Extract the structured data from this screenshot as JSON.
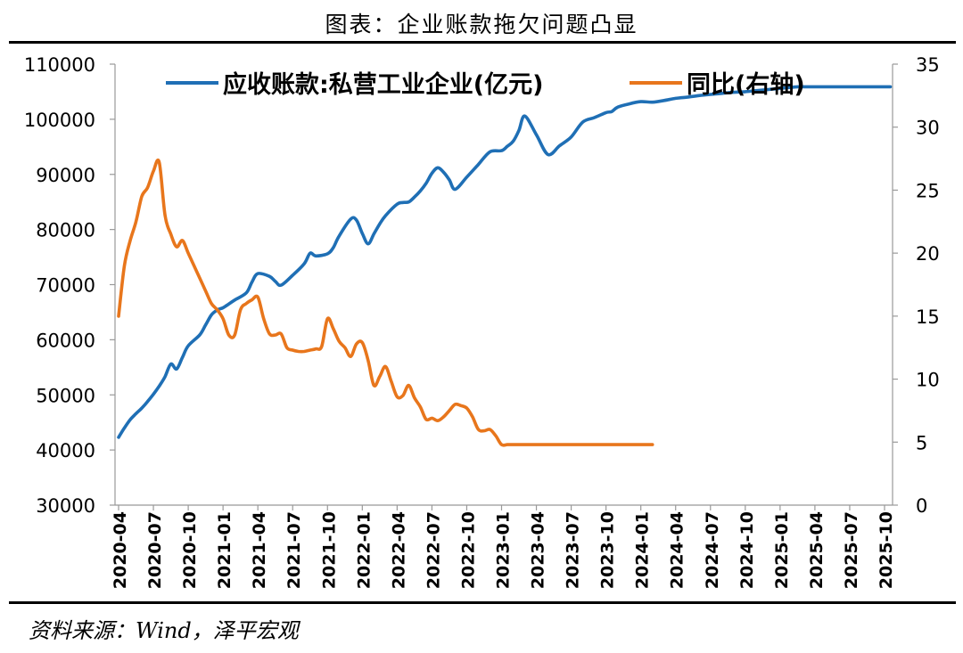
{
  "page": {
    "title": "图表：企业账款拖欠问题凸显",
    "source": "资料来源：Wind，泽平宏观"
  },
  "chart_data": {
    "type": "line",
    "title": "图表：企业账款拖欠问题凸显",
    "x_ticks": [
      "2020-04",
      "2020-07",
      "2020-10",
      "2021-01",
      "2021-04",
      "2021-07",
      "2021-10",
      "2022-01",
      "2022-04",
      "2022-07",
      "2022-10",
      "2023-01",
      "2023-04",
      "2023-07",
      "2023-10",
      "2024-01",
      "2024-04",
      "2024-07",
      "2024-10",
      "2025-01",
      "2025-04",
      "2025-07",
      "2025-10"
    ],
    "left_axis": {
      "min": 30000,
      "max": 110000,
      "ticks": [
        30000,
        40000,
        50000,
        60000,
        70000,
        80000,
        90000,
        100000,
        110000
      ]
    },
    "right_axis": {
      "min": 0,
      "max": 35,
      "ticks": [
        0,
        5,
        10,
        15,
        20,
        25,
        30,
        35
      ]
    },
    "legend_placement": "top-center",
    "series": [
      {
        "name": "应收账款:私营工业企业(亿元)",
        "axis": "left",
        "color": "#1F6FB5",
        "x": [
          0,
          0.5,
          1,
          1.5,
          2,
          2.5,
          3,
          3.5,
          4,
          4.5,
          5,
          5.5,
          6,
          7,
          7.5,
          8,
          8.5,
          9,
          9.5,
          10,
          11,
          11.5,
          12,
          13,
          13.5,
          14,
          15,
          16,
          16.5,
          17,
          18,
          18.5,
          19,
          20,
          20.5,
          21,
          21.5,
          22,
          22.5,
          23,
          24,
          24.5,
          25,
          25.5,
          26,
          26.5,
          27,
          27.5,
          28,
          28.5,
          29,
          30,
          31,
          32,
          33,
          33.5,
          34,
          34.5,
          35,
          36,
          37,
          38,
          39,
          40,
          41,
          42,
          42.5,
          43,
          44,
          45,
          46,
          47,
          48,
          49,
          50,
          51,
          52,
          53,
          54,
          55,
          56,
          57,
          58,
          58.5,
          59,
          60,
          61,
          62,
          63,
          64,
          65,
          66,
          66.5
        ],
        "values": [
          42300,
          44000,
          45500,
          46600,
          47600,
          48800,
          50100,
          51600,
          53300,
          55600,
          54700,
          56800,
          58900,
          60900,
          62700,
          64500,
          65400,
          65800,
          66500,
          67200,
          68500,
          70500,
          72000,
          71500,
          70600,
          69900,
          71700,
          73800,
          75700,
          75200,
          75600,
          76700,
          78800,
          81900,
          81700,
          79300,
          77400,
          79200,
          81000,
          82500,
          84600,
          84900,
          85000,
          85900,
          87000,
          88400,
          90200,
          91200,
          90400,
          89000,
          87300,
          89500,
          91800,
          94100,
          94300,
          95100,
          96000,
          98000,
          100600,
          97200,
          93600,
          95200,
          96800,
          99500,
          100300,
          101200,
          101400,
          102200,
          102800,
          103200,
          103100,
          103400,
          103800,
          104000,
          104300,
          104500,
          104700,
          104900,
          105000,
          105200,
          105400,
          105600,
          105800,
          105900,
          105900,
          105900,
          105900,
          105900,
          105900,
          105900,
          105900,
          105900,
          105900
        ]
      },
      {
        "name": "同比(右轴)",
        "axis": "right",
        "color": "#E8761C",
        "x": [
          0,
          0.5,
          1,
          1.5,
          2,
          2.5,
          3,
          3.5,
          4,
          4.5,
          5,
          5.5,
          6,
          6.5,
          7,
          7.5,
          8,
          8.5,
          9,
          9.5,
          10,
          10.5,
          11,
          11.5,
          12,
          12.5,
          13,
          13.5,
          14,
          14.5,
          15,
          15.5,
          16,
          16.5,
          17,
          17.5,
          18,
          18.5,
          19,
          19.5,
          20,
          20.5,
          21,
          21.5,
          22,
          22.5,
          23,
          23.5,
          24,
          24.5,
          25,
          25.5,
          26,
          26.5,
          27,
          27.5,
          28,
          28.5,
          29,
          29.5,
          30,
          30.5,
          31,
          31.5,
          32,
          32.5,
          33,
          33.5,
          34,
          34.5,
          35,
          35.5,
          36,
          36.5,
          37,
          37.5,
          38,
          38.5,
          39,
          39.5,
          40,
          40.5,
          41,
          41.5,
          42,
          42.5,
          43,
          43.5,
          44,
          44.5,
          45,
          45.5,
          46
        ],
        "values": [
          15,
          19,
          21,
          22.5,
          24.5,
          25.2,
          26.5,
          27.2,
          23,
          21.5,
          20.5,
          21,
          20,
          19,
          18,
          17,
          16,
          15.5,
          14.8,
          13.5,
          13.5,
          15.5,
          16,
          16.3,
          16.5,
          14.8,
          13.6,
          13.5,
          13.6,
          12.5,
          12.3,
          12.2,
          12.2,
          12.3,
          12.4,
          12.6,
          14.8,
          14,
          13,
          12.5,
          11.8,
          12.8,
          12.9,
          11.5,
          9.5,
          10.2,
          11,
          9.8,
          8.6,
          8.7,
          9.5,
          8.5,
          7.8,
          6.8,
          6.9,
          6.7,
          7,
          7.5,
          8.0,
          7.9,
          7.7,
          7,
          6,
          5.9,
          6,
          5.5,
          4.8,
          4.8,
          4.8,
          4.8,
          4.8,
          4.8,
          4.8,
          4.8,
          4.8,
          4.8,
          4.8,
          4.8,
          4.8,
          4.8,
          4.8,
          4.8,
          4.8,
          4.8,
          4.8,
          4.8,
          4.8,
          4.8,
          4.8,
          4.8,
          4.8,
          4.8,
          4.8
        ]
      }
    ]
  }
}
